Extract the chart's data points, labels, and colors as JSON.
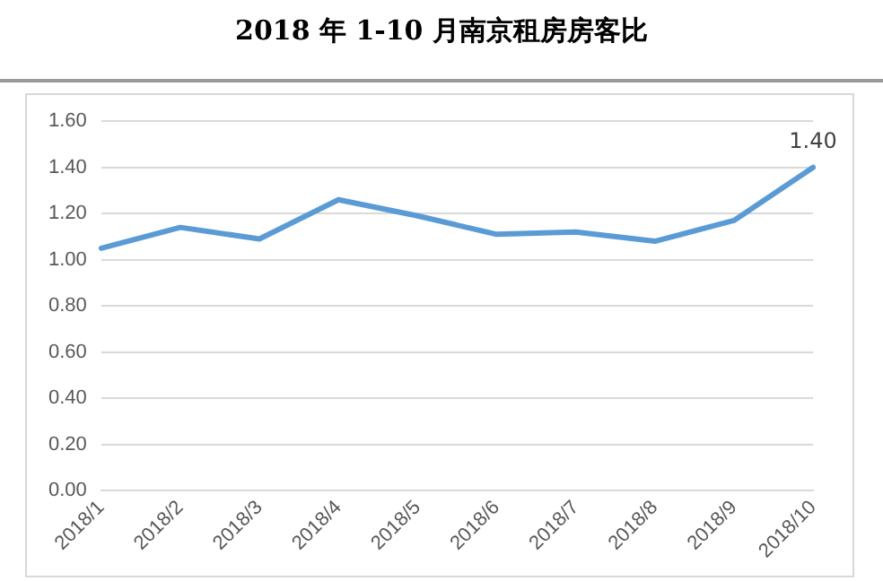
{
  "chart_data": {
    "type": "line",
    "title": "2018 年 1-10 月南京租房房客比",
    "categories": [
      "2018/1",
      "2018/2",
      "2018/3",
      "2018/4",
      "2018/5",
      "2018/6",
      "2018/7",
      "2018/8",
      "2018/9",
      "2018/10"
    ],
    "series": [
      {
        "color": "#5b9bd5",
        "values": [
          1.05,
          1.14,
          1.09,
          1.26,
          1.19,
          1.11,
          1.12,
          1.08,
          1.17,
          1.4
        ],
        "value_labels": [
          null,
          null,
          null,
          null,
          null,
          null,
          null,
          null,
          null,
          "1.40"
        ]
      }
    ],
    "ylim": [
      0,
      1.6
    ],
    "yticks": [
      {
        "value": 0,
        "label": "0.00"
      },
      {
        "value": 0.2,
        "label": "0.20"
      },
      {
        "value": 0.4,
        "label": "0.40"
      },
      {
        "value": 0.6,
        "label": "0.60"
      },
      {
        "value": 0.8,
        "label": "0.80"
      },
      {
        "value": 1,
        "label": "1.00"
      },
      {
        "value": 1.2,
        "label": "1.20"
      },
      {
        "value": 1.4,
        "label": "1.40"
      },
      {
        "value": 1.6,
        "label": "1.60"
      }
    ],
    "grid": "y",
    "legend": false,
    "marker": "none"
  }
}
